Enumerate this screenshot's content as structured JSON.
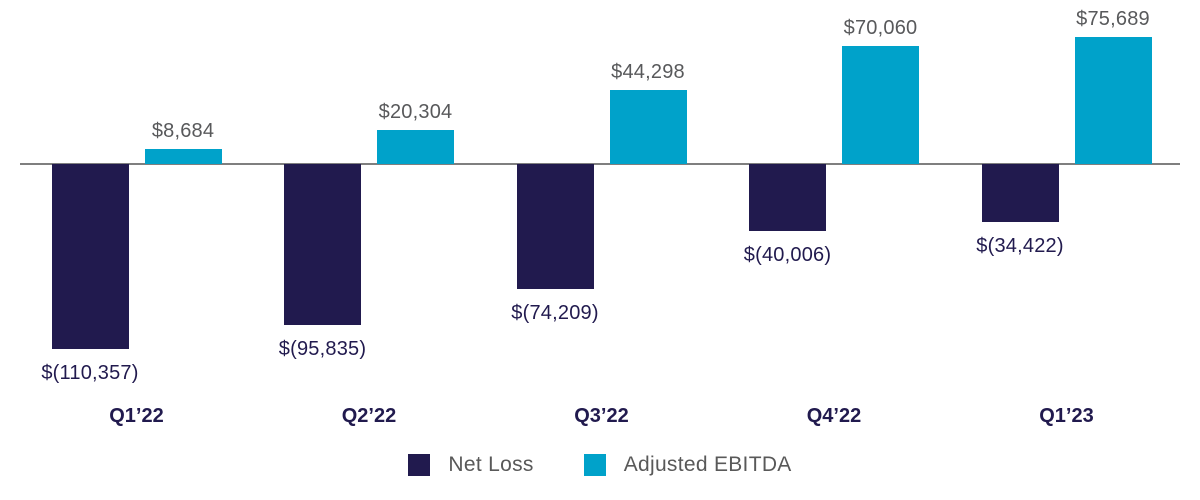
{
  "chart_data": {
    "type": "bar",
    "title": "",
    "xlabel": "",
    "ylabel": "",
    "categories": [
      "Q1’22",
      "Q2’22",
      "Q3’22",
      "Q4’22",
      "Q1’23"
    ],
    "series": [
      {
        "name": "Net Loss",
        "color": "#211a4e",
        "values": [
          -110357,
          -95835,
          -74209,
          -40006,
          -34422
        ],
        "labels": [
          "$(110,357)",
          "$(95,835)",
          "$(74,209)",
          "$(40,006)",
          "$(34,422)"
        ]
      },
      {
        "name": "Adjusted EBITDA",
        "color": "#00a2ca",
        "values": [
          8684,
          20304,
          44298,
          70060,
          75689
        ],
        "labels": [
          "$8,684",
          "$20,304",
          "$44,298",
          "$70,060",
          "$75,689"
        ]
      }
    ],
    "ylim": [
      -120000,
      80000
    ],
    "grid": false,
    "legend_position": "bottom",
    "colors": {
      "axis_line": "#7f7f7f",
      "positive_value_label": "#58595b",
      "negative_value_label": "#211a4e",
      "category_label": "#211a4e",
      "legend_text": "#595959"
    }
  }
}
